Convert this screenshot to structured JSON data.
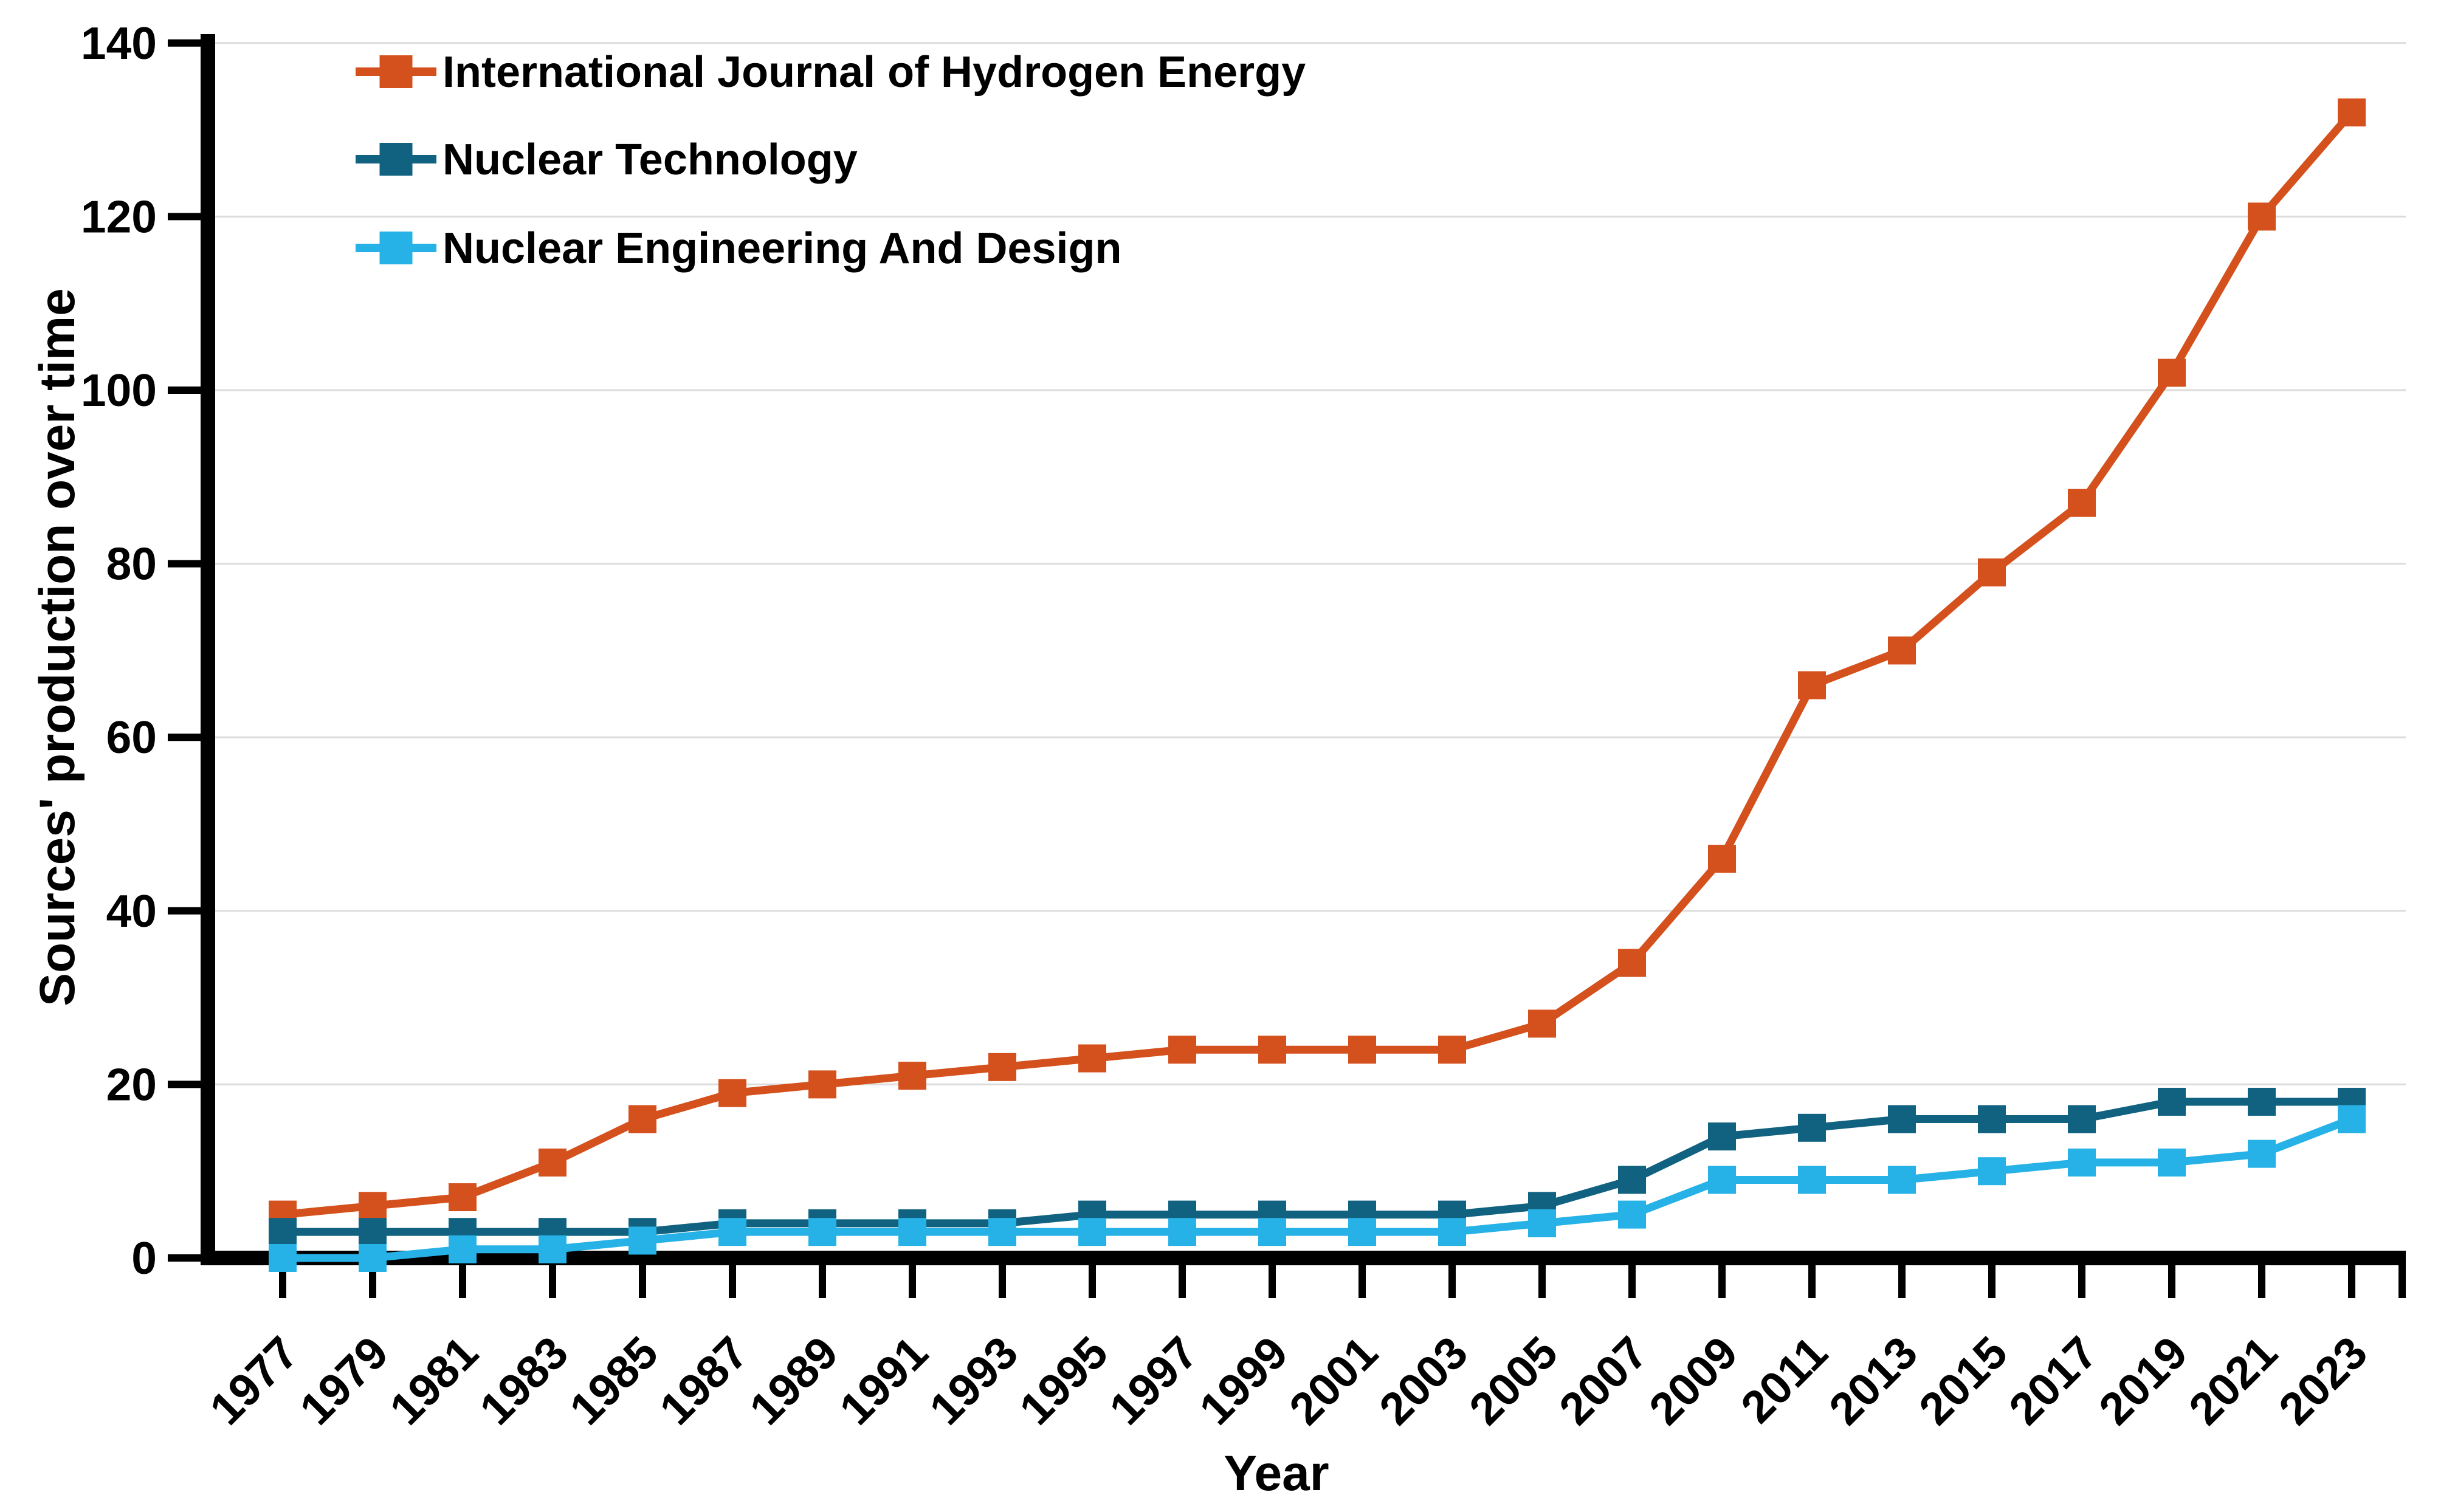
{
  "chart_data": {
    "type": "line",
    "title": "",
    "xlabel": "Year",
    "ylabel": "Sources' production over time",
    "ylim": [
      0,
      140
    ],
    "yticks": [
      0,
      20,
      40,
      60,
      80,
      100,
      120,
      140
    ],
    "grid": "horizontal-light-gray",
    "legend_position": "top-left-inside",
    "marker": "square",
    "categories": [
      "1977",
      "1979",
      "1981",
      "1983",
      "1985",
      "1987",
      "1989",
      "1991",
      "1993",
      "1995",
      "1997",
      "1999",
      "2001",
      "2003",
      "2005",
      "2007",
      "2009",
      "2011",
      "2013",
      "2015",
      "2017",
      "2019",
      "2021",
      "2023"
    ],
    "series": [
      {
        "name": "International Journal of Hydrogen Energy",
        "color": "#D4501C",
        "values": [
          5,
          6,
          7,
          11,
          16,
          19,
          20,
          21,
          22,
          23,
          24,
          24,
          24,
          24,
          27,
          34,
          46,
          66,
          70,
          79,
          87,
          102,
          120,
          132
        ]
      },
      {
        "name": "Nuclear Technology",
        "color": "#116280",
        "values": [
          3,
          3,
          3,
          3,
          3,
          4,
          4,
          4,
          4,
          5,
          5,
          5,
          5,
          5,
          6,
          9,
          14,
          15,
          16,
          16,
          16,
          18,
          18,
          18
        ]
      },
      {
        "name": "Nuclear Engineering And Design",
        "color": "#26B2E7",
        "values": [
          0,
          0,
          1,
          1,
          2,
          3,
          3,
          3,
          3,
          3,
          3,
          3,
          3,
          3,
          4,
          5,
          9,
          9,
          9,
          10,
          11,
          11,
          12,
          16
        ]
      }
    ],
    "colors": {
      "axis": "#000000",
      "gridline": "#DCDCDC",
      "background": "#FFFFFF",
      "tick_label": "#000000"
    }
  }
}
